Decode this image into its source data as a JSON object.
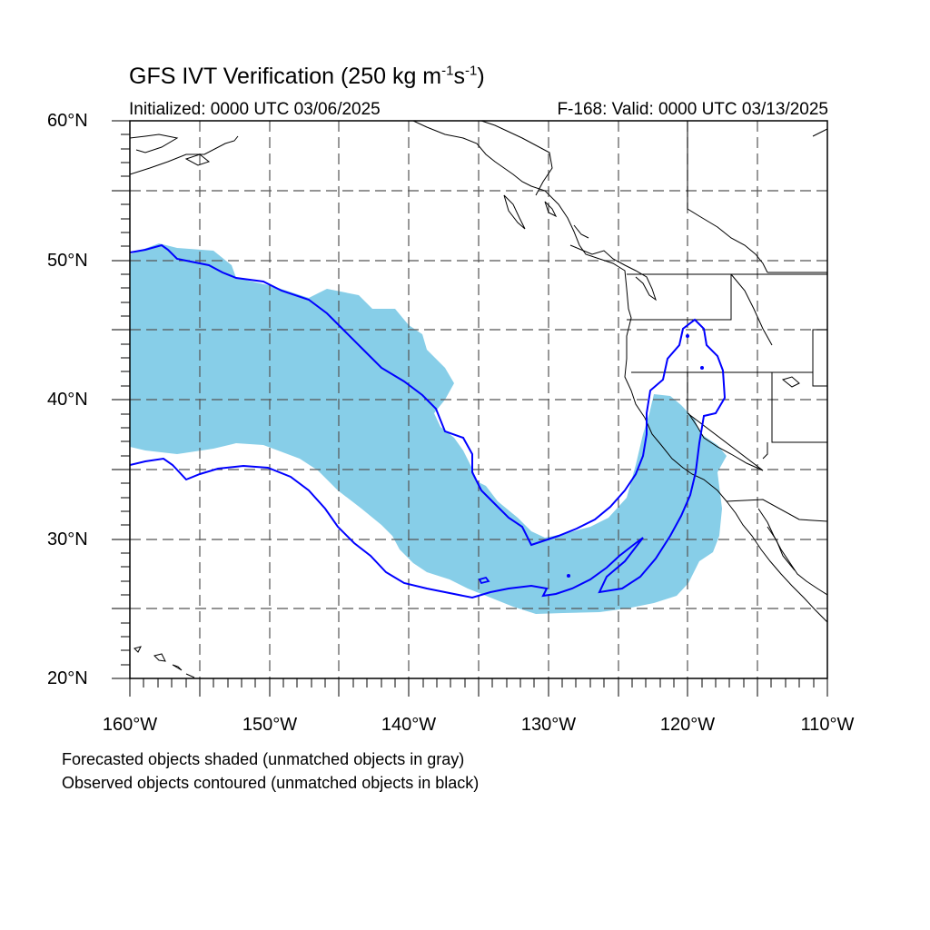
{
  "title": {
    "main": "GFS IVT Verification (250 kg m",
    "sup1": "-1",
    "mid": "s",
    "sup2": "-1",
    "end": ")"
  },
  "subtitle_left": "Initialized: 0000 UTC 03/06/2025",
  "subtitle_right": "F-168: Valid: 0000 UTC 03/13/2025",
  "lat_labels": [
    "60°N",
    "50°N",
    "40°N",
    "30°N",
    "20°N"
  ],
  "lon_labels": [
    "160°W",
    "150°W",
    "140°W",
    "130°W",
    "120°W",
    "110°W"
  ],
  "notes": {
    "line1": "Forecasted objects shaded (unmatched objects in gray)",
    "line2": "Observed objects contoured (unmatched objects in black)"
  },
  "colors": {
    "forecast_fill": "#87CEE8",
    "observed_contour": "#0000FF",
    "coastline": "#000000",
    "grid": "#555555"
  },
  "map_extent": {
    "lon_min": -160,
    "lon_max": -110,
    "lat_min": 20,
    "lat_max": 60
  }
}
